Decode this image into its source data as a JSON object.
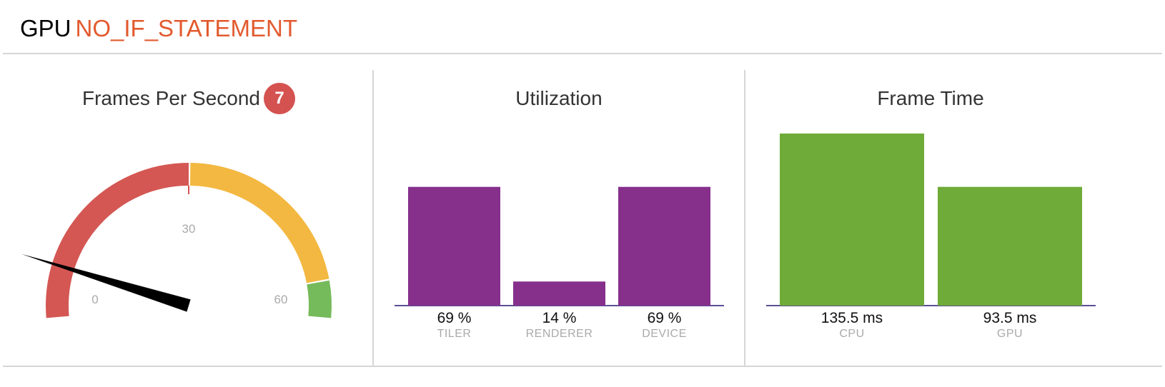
{
  "header": {
    "prefix": "GPU",
    "name": "NO_IF_STATEMENT"
  },
  "fps_panel": {
    "title": "Frames Per Second",
    "badge": "7",
    "gauge": {
      "min": 0,
      "max": 60,
      "value": 7,
      "tick_labels": [
        "0",
        "30",
        "60"
      ],
      "zones": [
        {
          "from": 0,
          "to": 30,
          "color": "#d45753"
        },
        {
          "from": 30,
          "to": 55,
          "color": "#f3b841"
        },
        {
          "from": 55,
          "to": 60,
          "color": "#76bb5b"
        }
      ]
    }
  },
  "utilization_panel": {
    "title": "Utilization",
    "bar_color": "#86308c",
    "axis_color": "#5c4f96",
    "chart_data": {
      "type": "bar",
      "title": "Utilization",
      "categories": [
        "TILER",
        "RENDERER",
        "DEVICE"
      ],
      "value_labels": [
        "69 %",
        "14 %",
        "69 %"
      ],
      "values": [
        69,
        14,
        69
      ],
      "ylim": [
        0,
        100
      ],
      "grid": false
    }
  },
  "frametime_panel": {
    "title": "Frame Time",
    "bar_color": "#6fab38",
    "axis_color": "#5c4f96",
    "chart_data": {
      "type": "bar",
      "title": "Frame Time",
      "categories": [
        "CPU",
        "GPU"
      ],
      "value_labels": [
        "135.5 ms",
        "93.5 ms"
      ],
      "values": [
        135.5,
        93.5
      ],
      "ylim": [
        0,
        135.5
      ],
      "grid": false
    }
  }
}
